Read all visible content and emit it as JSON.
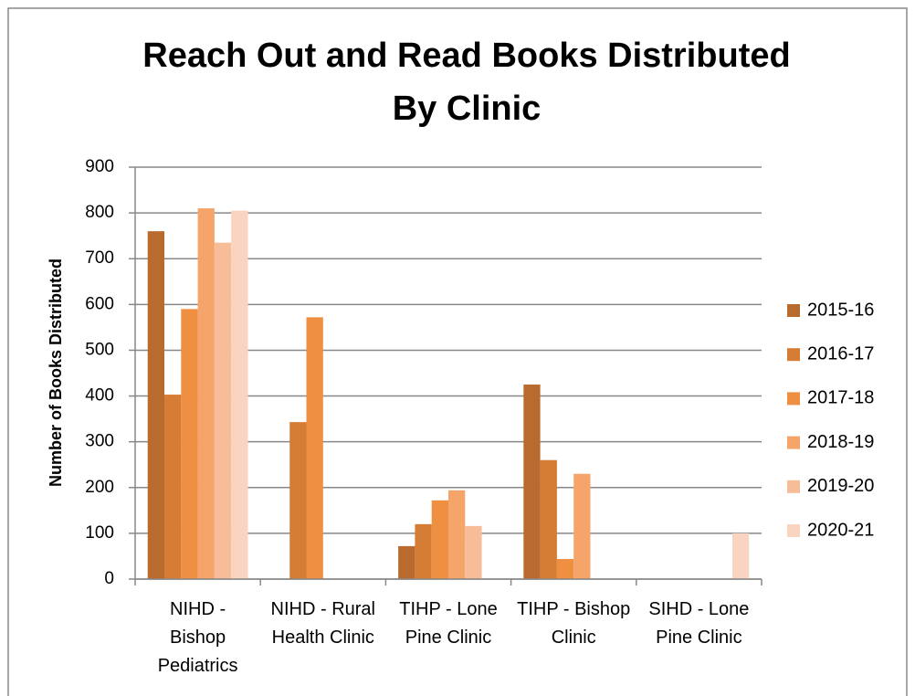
{
  "chart_data": {
    "type": "bar",
    "title": [
      "Reach Out and Read Books Distributed",
      "By Clinic"
    ],
    "y_label": "Number of Books Distributed",
    "categories": [
      "NIHD - Bishop Pediatrics",
      "NIHD - Rural Health Clinic",
      "TIHP - Lone Pine Clinic",
      "TIHP - Bishop Clinic",
      "SIHD - Lone Pine Clinic"
    ],
    "series": [
      {
        "name": "2015-16",
        "color": "#b96a2e",
        "values": [
          760,
          null,
          72,
          425,
          null
        ]
      },
      {
        "name": "2016-17",
        "color": "#d67d35",
        "values": [
          403,
          343,
          120,
          260,
          null
        ]
      },
      {
        "name": "2017-18",
        "color": "#ee8f42",
        "values": [
          590,
          572,
          172,
          44,
          null
        ]
      },
      {
        "name": "2018-19",
        "color": "#f5a46a",
        "values": [
          810,
          null,
          194,
          230,
          null
        ]
      },
      {
        "name": "2019-20",
        "color": "#f7bd99",
        "values": [
          735,
          null,
          116,
          null,
          null
        ]
      },
      {
        "name": "2020-21",
        "color": "#f9d4c0",
        "values": [
          805,
          null,
          null,
          null,
          100
        ]
      }
    ],
    "ylim": [
      0,
      900
    ],
    "yticks": [
      0,
      100,
      200,
      300,
      400,
      500,
      600,
      700,
      800,
      900
    ],
    "grid": true,
    "legend": "right"
  }
}
